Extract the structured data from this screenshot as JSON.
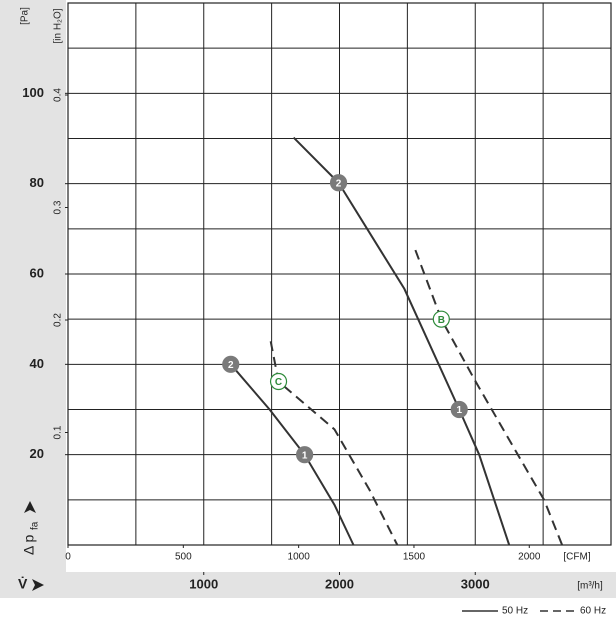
{
  "chart_data": {
    "type": "line",
    "y_label_main": "Δ p",
    "y_label_sub": "fa",
    "y_unit": "[Pa]",
    "y3_unit": "[in H₂O]",
    "x_label": "V̇",
    "x_unit": "[m³/h]",
    "x2_unit": "[CFM]",
    "xlim": [
      0,
      4000
    ],
    "xticks": [
      1000,
      2000,
      3000
    ],
    "x2lim": [
      0,
      2354.3
    ],
    "x2ticks": [
      0,
      500,
      1000,
      1500,
      2000
    ],
    "ylim": [
      0,
      120
    ],
    "yticks": [
      20,
      40,
      60,
      80,
      100
    ],
    "y3lim": [
      0,
      0.4818
    ],
    "y3ticks": [
      0.1,
      0.2,
      0.3,
      0.4
    ],
    "xgrid_step": 500,
    "ygrid_step": 10,
    "series": [
      {
        "name": "50 Hz",
        "dashed": false,
        "color": "#333333",
        "x": [
          1662,
          1993,
          2478,
          2882,
          3029,
          3250
        ],
        "values": [
          90.2,
          80.2,
          56.7,
          30,
          20,
          0
        ]
      },
      {
        "name": "60 Hz",
        "dashed": true,
        "color": "#333333",
        "x": [
          2559,
          2750,
          2993,
          3250,
          3507,
          3640
        ],
        "values": [
          65.3,
          50,
          36.7,
          23.3,
          10,
          0
        ]
      },
      {
        "name": "50 Hz",
        "dashed": false,
        "color": "#333333",
        "x": [
          1199,
          1485,
          1743,
          1963,
          2103
        ],
        "values": [
          40,
          30,
          20,
          8.9,
          0
        ]
      },
      {
        "name": "60 Hz",
        "dashed": true,
        "color": "#333333",
        "x": [
          1493,
          1551,
          1963,
          2221,
          2426
        ],
        "values": [
          45.1,
          36.2,
          25.6,
          12.2,
          0
        ]
      }
    ],
    "annotations": [
      {
        "text": "2",
        "x": 1993,
        "y": 80.2,
        "style": "filled"
      },
      {
        "text": "1",
        "x": 2882,
        "y": 30,
        "style": "filled"
      },
      {
        "text": "B",
        "x": 2750,
        "y": 50,
        "style": "outline"
      },
      {
        "text": "2",
        "x": 1199,
        "y": 40,
        "style": "filled"
      },
      {
        "text": "1",
        "x": 1743,
        "y": 20,
        "style": "filled"
      },
      {
        "text": "C",
        "x": 1551,
        "y": 36.2,
        "style": "outline"
      }
    ]
  }
}
